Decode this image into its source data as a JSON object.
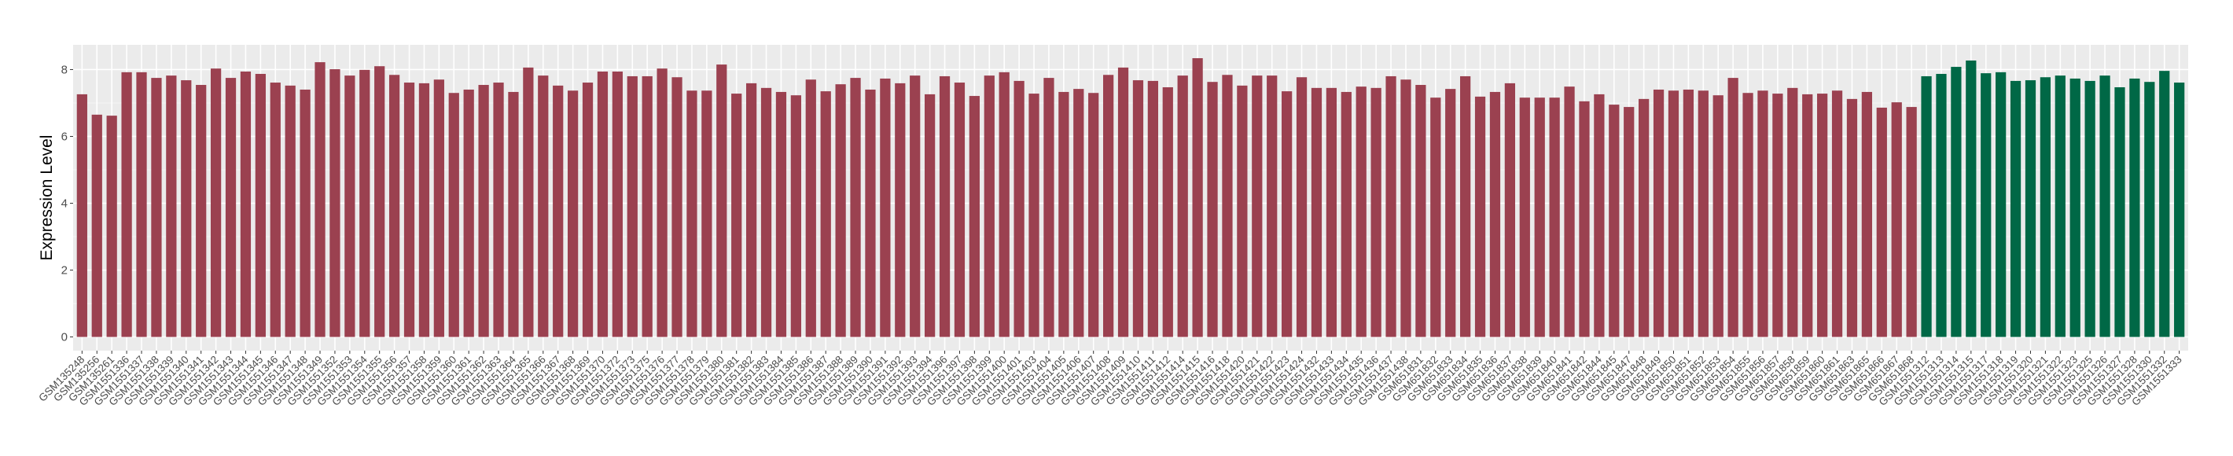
{
  "chart_data": {
    "type": "bar",
    "title": "",
    "xlabel": "",
    "ylabel": "Expression Level",
    "ylim": [
      -0.41,
      8.74
    ],
    "yticks": [
      0,
      2,
      4,
      6,
      8
    ],
    "grid": true,
    "panel_background": "#EBEBEB",
    "legend": "none",
    "series": [
      {
        "color": "#9B4150",
        "categories": [
          "GSM135248",
          "GSM135256",
          "GSM135261",
          "GSM1551336",
          "GSM1551337",
          "GSM1551338",
          "GSM1551339",
          "GSM1551340",
          "GSM1551341",
          "GSM1551342",
          "GSM1551343",
          "GSM1551344",
          "GSM1551345",
          "GSM1551346",
          "GSM1551347",
          "GSM1551348",
          "GSM1551349",
          "GSM1551352",
          "GSM1551353",
          "GSM1551354",
          "GSM1551355",
          "GSM1551356",
          "GSM1551357",
          "GSM1551358",
          "GSM1551359",
          "GSM1551360",
          "GSM1551361",
          "GSM1551362",
          "GSM1551363",
          "GSM1551364",
          "GSM1551365",
          "GSM1551366",
          "GSM1551367",
          "GSM1551368",
          "GSM1551369",
          "GSM1551370",
          "GSM1551372",
          "GSM1551373",
          "GSM1551375",
          "GSM1551376",
          "GSM1551377",
          "GSM1551378",
          "GSM1551379",
          "GSM1551380",
          "GSM1551381",
          "GSM1551382",
          "GSM1551383",
          "GSM1551384",
          "GSM1551385",
          "GSM1551386",
          "GSM1551387",
          "GSM1551388",
          "GSM1551389",
          "GSM1551390",
          "GSM1551391",
          "GSM1551392",
          "GSM1551393",
          "GSM1551394",
          "GSM1551396",
          "GSM1551397",
          "GSM1551398",
          "GSM1551399",
          "GSM1551400",
          "GSM1551401",
          "GSM1551403",
          "GSM1551404",
          "GSM1551405",
          "GSM1551406",
          "GSM1551407",
          "GSM1551408",
          "GSM1551409",
          "GSM1551410",
          "GSM1551411",
          "GSM1551412",
          "GSM1551414",
          "GSM1551415",
          "GSM1551416",
          "GSM1551418",
          "GSM1551420",
          "GSM1551421",
          "GSM1551422",
          "GSM1551423",
          "GSM1551424",
          "GSM1551432",
          "GSM1551433",
          "GSM1551434",
          "GSM1551435",
          "GSM1551436",
          "GSM1551437",
          "GSM1551438",
          "GSM651831",
          "GSM651832",
          "GSM651833",
          "GSM651834",
          "GSM651835",
          "GSM651836",
          "GSM651837",
          "GSM651838",
          "GSM651839",
          "GSM651840",
          "GSM651841",
          "GSM651842",
          "GSM651844",
          "GSM651845",
          "GSM651847",
          "GSM651848",
          "GSM651849",
          "GSM651850",
          "GSM651851",
          "GSM651852",
          "GSM651853",
          "GSM651854",
          "GSM651855",
          "GSM651856",
          "GSM651857",
          "GSM651858",
          "GSM651859",
          "GSM651860",
          "GSM651861",
          "GSM651863",
          "GSM651865",
          "GSM651866",
          "GSM651867",
          "GSM651868"
        ],
        "values": [
          7.26,
          6.65,
          6.62,
          7.92,
          7.92,
          7.75,
          7.82,
          7.68,
          7.54,
          8.03,
          7.75,
          7.94,
          7.87,
          7.61,
          7.52,
          7.4,
          8.22,
          8.01,
          7.82,
          7.99,
          8.1,
          7.84,
          7.61,
          7.59,
          7.7,
          7.3,
          7.4,
          7.54,
          7.61,
          7.33,
          8.06,
          7.82,
          7.52,
          7.37,
          7.61,
          7.94,
          7.94,
          7.8,
          7.8,
          8.03,
          7.77,
          7.37,
          7.37,
          8.15,
          7.28,
          7.59,
          7.45,
          7.33,
          7.23,
          7.7,
          7.35,
          7.56,
          7.75,
          7.4,
          7.73,
          7.59,
          7.82,
          7.26,
          7.8,
          7.61,
          7.21,
          7.82,
          7.92,
          7.66,
          7.28,
          7.75,
          7.33,
          7.42,
          7.3,
          7.84,
          8.06,
          7.68,
          7.66,
          7.47,
          7.82,
          8.34,
          7.63,
          7.84,
          7.52,
          7.82,
          7.82,
          7.35,
          7.77,
          7.45,
          7.45,
          7.33,
          7.49,
          7.45,
          7.8,
          7.7,
          7.54,
          7.16,
          7.42,
          7.8,
          7.19,
          7.33,
          7.59,
          7.16,
          7.16,
          7.16,
          7.49,
          7.05,
          7.26,
          6.95,
          6.88,
          7.12,
          7.4,
          7.37,
          7.4,
          7.37,
          7.23,
          7.75,
          7.3,
          7.37,
          7.28,
          7.45,
          7.26,
          7.28,
          7.37,
          7.12,
          7.33,
          6.86,
          7.02,
          6.88
        ]
      },
      {
        "color": "#006846",
        "categories": [
          "GSM1551312",
          "GSM1551313",
          "GSM1551314",
          "GSM1551315",
          "GSM1551317",
          "GSM1551318",
          "GSM1551319",
          "GSM1551320",
          "GSM1551321",
          "GSM1551322",
          "GSM1551323",
          "GSM1551325",
          "GSM1551326",
          "GSM1551327",
          "GSM1551328",
          "GSM1551330",
          "GSM1551332",
          "GSM1551333"
        ],
        "values": [
          7.8,
          7.87,
          8.08,
          8.27,
          7.89,
          7.92,
          7.66,
          7.68,
          7.77,
          7.82,
          7.73,
          7.66,
          7.82,
          7.47,
          7.73,
          7.63,
          7.96,
          7.61
        ]
      }
    ]
  }
}
